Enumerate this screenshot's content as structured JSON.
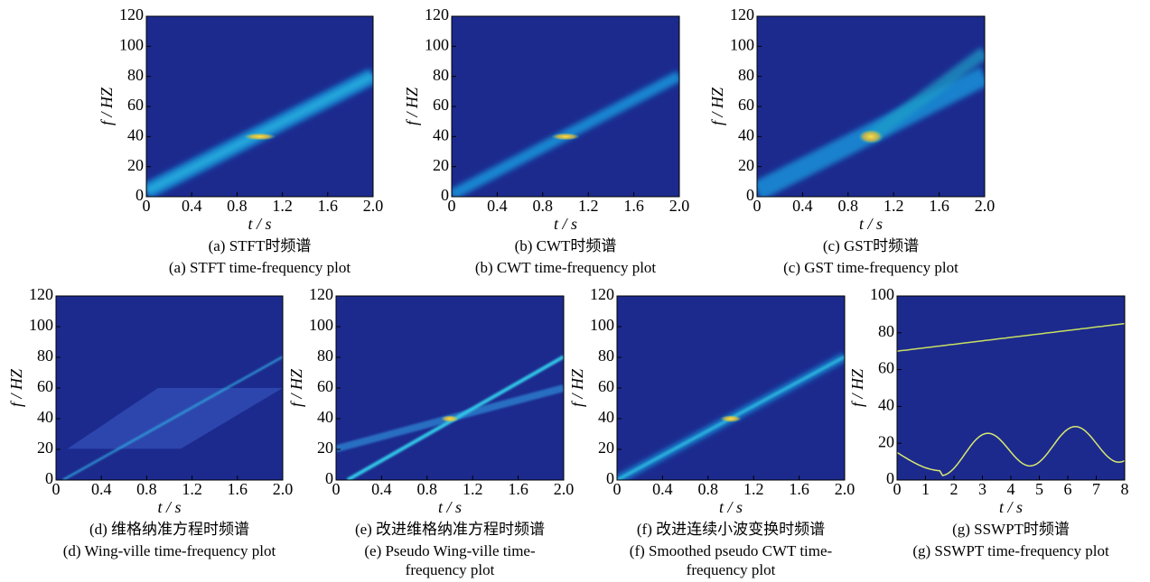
{
  "chart_data": [
    {
      "type": "heatmap",
      "xlabel": "t / s",
      "ylabel": "f / HZ",
      "xlim": [
        0,
        2
      ],
      "ylim": [
        0,
        120
      ],
      "xticks": [
        0,
        0.4,
        0.8,
        1.2,
        1.6,
        {
          "value": 2,
          "label": "2.0"
        }
      ],
      "yticks": [
        0,
        20,
        40,
        60,
        80,
        100,
        120
      ],
      "caption_zh": "(a)  STFT时频谱",
      "caption_en": "(a)  STFT time-frequency plot"
    },
    {
      "type": "heatmap",
      "xlabel": "t / s",
      "ylabel": "f / HZ",
      "xlim": [
        0,
        2
      ],
      "ylim": [
        0,
        120
      ],
      "xticks": [
        0,
        0.4,
        0.8,
        1.2,
        1.6,
        {
          "value": 2,
          "label": "2.0"
        }
      ],
      "yticks": [
        0,
        20,
        40,
        60,
        80,
        100,
        120
      ],
      "caption_zh": "(b)  CWT时频谱",
      "caption_en": "(b)  CWT time-frequency plot"
    },
    {
      "type": "heatmap",
      "xlabel": "t / s",
      "ylabel": "f / HZ",
      "xlim": [
        0,
        2
      ],
      "ylim": [
        0,
        120
      ],
      "xticks": [
        0,
        0.4,
        0.8,
        1.2,
        1.6,
        {
          "value": 2,
          "label": "2.0"
        }
      ],
      "yticks": [
        0,
        20,
        40,
        60,
        80,
        100,
        120
      ],
      "caption_zh": "(c)  GST时频谱",
      "caption_en": "(c)  GST time-frequency plot"
    },
    {
      "type": "heatmap",
      "xlabel": "t / s",
      "ylabel": "f / HZ",
      "xlim": [
        0,
        2
      ],
      "ylim": [
        0,
        120
      ],
      "xticks": [
        0,
        0.4,
        0.8,
        1.2,
        1.6,
        {
          "value": 2,
          "label": "2.0"
        }
      ],
      "yticks": [
        0,
        20,
        40,
        60,
        80,
        100,
        120
      ],
      "caption_zh": "(d)  维格纳准方程时频谱",
      "caption_en": "(d)  Wing-ville time-frequency plot"
    },
    {
      "type": "heatmap",
      "xlabel": "t / s",
      "ylabel": "f / HZ",
      "xlim": [
        0,
        2
      ],
      "ylim": [
        0,
        120
      ],
      "xticks": [
        0,
        0.4,
        0.8,
        1.2,
        1.6,
        {
          "value": 2,
          "label": "2.0"
        }
      ],
      "yticks": [
        0,
        20,
        40,
        60,
        80,
        100,
        120
      ],
      "caption_zh": "(e)  改进维格纳准方程时频谱",
      "caption_en": "(e)  Pseudo Wing-ville time-frequency plot"
    },
    {
      "type": "heatmap",
      "xlabel": "t / s",
      "ylabel": "f / HZ",
      "xlim": [
        0,
        2
      ],
      "ylim": [
        0,
        120
      ],
      "xticks": [
        0,
        0.4,
        0.8,
        1.2,
        1.6,
        {
          "value": 2,
          "label": "2.0"
        }
      ],
      "yticks": [
        0,
        20,
        40,
        60,
        80,
        100,
        120
      ],
      "caption_zh": "(f)  改进连续小波变换时频谱",
      "caption_en": "(f)  Smoothed pseudo CWT time-frequency plot"
    },
    {
      "type": "heatmap",
      "xlabel": "t / s",
      "ylabel": "f / HZ",
      "xlim": [
        0,
        8
      ],
      "ylim": [
        0,
        100
      ],
      "xticks": [
        0,
        1,
        2,
        3,
        4,
        5,
        6,
        7,
        8
      ],
      "yticks": [
        0,
        20,
        40,
        60,
        80,
        100
      ],
      "caption_zh": "(g)  SSWPT时频谱",
      "caption_en": "(g)  SSWPT time-frequency plot"
    }
  ]
}
